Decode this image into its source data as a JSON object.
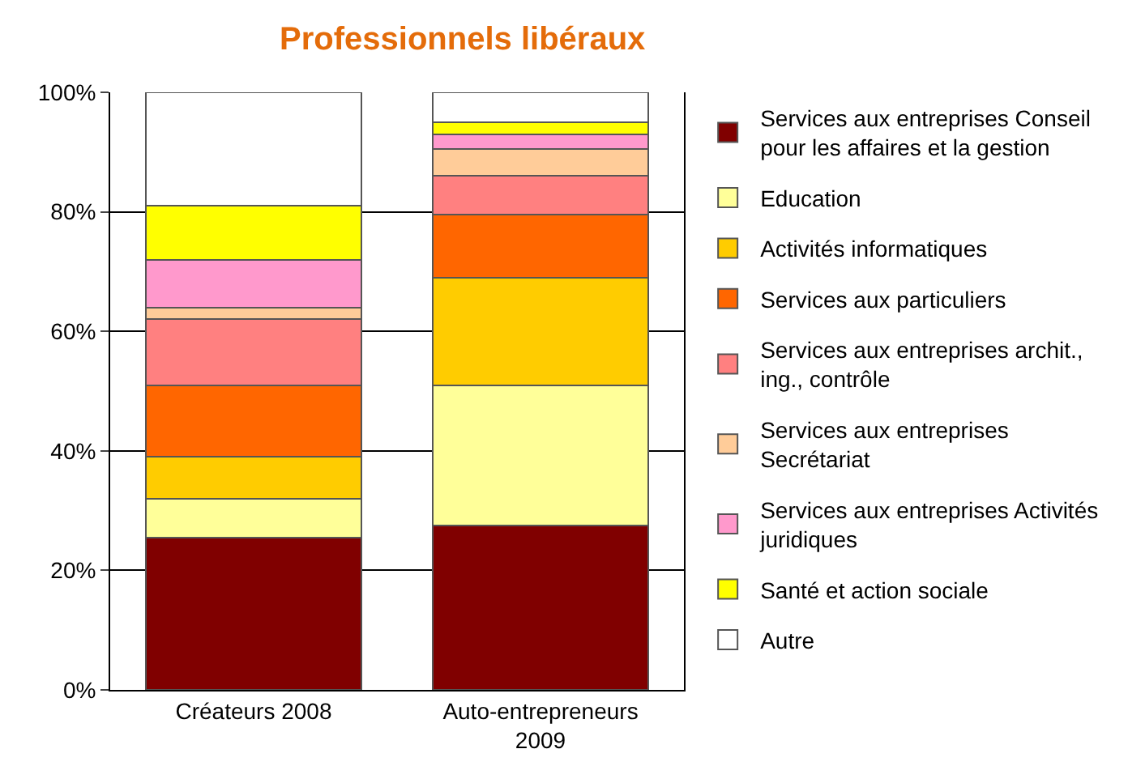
{
  "chart_data": {
    "type": "bar",
    "title": "Professionnels libéraux",
    "categories": [
      "Créateurs 2008",
      "Auto-entrepreneurs 2009"
    ],
    "stacked": true,
    "series": [
      {
        "name": "Services aux entreprises Conseil pour les affaires et la gestion",
        "color": "#800000",
        "values": [
          25.5,
          27.5
        ]
      },
      {
        "name": "Education",
        "color": "#ffff99",
        "values": [
          6.5,
          23.5
        ]
      },
      {
        "name": "Activités informatiques",
        "color": "#ffcc00",
        "values": [
          7,
          18
        ]
      },
      {
        "name": "Services aux particuliers",
        "color": "#ff6600",
        "values": [
          12,
          10.5
        ]
      },
      {
        "name": "Services aux entreprises archit., ing., contrôle",
        "color": "#ff8080",
        "values": [
          11,
          6.5
        ]
      },
      {
        "name": "Services aux entreprises Secrétariat",
        "color": "#ffcc99",
        "values": [
          2,
          4.5
        ]
      },
      {
        "name": "Services aux entreprises Activités juridiques",
        "color": "#ff99cc",
        "values": [
          8,
          2.5
        ]
      },
      {
        "name": "Santé et action sociale",
        "color": "#ffff00",
        "values": [
          9,
          2
        ]
      },
      {
        "name": "Autre",
        "color": "#ffffff",
        "values": [
          19,
          5
        ]
      }
    ],
    "ylim": [
      0,
      100
    ],
    "yticks": [
      {
        "value": 0,
        "label": "0%"
      },
      {
        "value": 20,
        "label": "20%"
      },
      {
        "value": 40,
        "label": "40%"
      },
      {
        "value": 60,
        "label": "60%"
      },
      {
        "value": 80,
        "label": "80%"
      },
      {
        "value": 100,
        "label": "100%"
      }
    ],
    "grid": "y",
    "legend": "right"
  }
}
